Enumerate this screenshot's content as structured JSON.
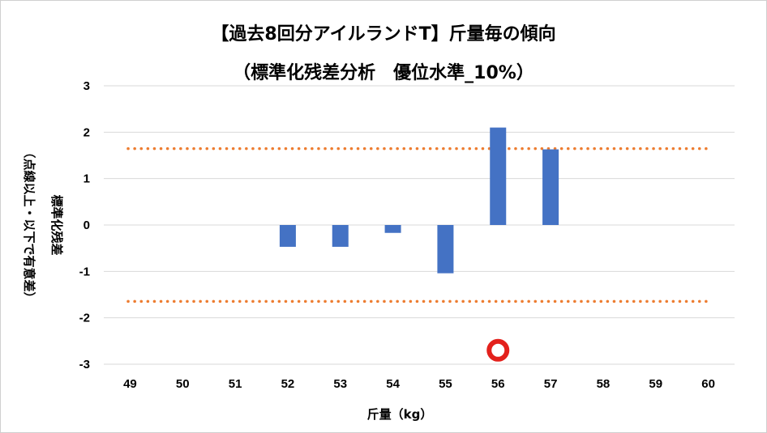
{
  "colors": {
    "bar": "#4472C4",
    "threshold": "#ED7D31",
    "grid": "#D9D9D9",
    "marker_ring": "#E3211C",
    "marker_fill": "#FFFFFF"
  },
  "chart_data": {
    "type": "bar",
    "title": "【過去8回分アイルランドT】斤量毎の傾向",
    "subtitle": "（標準化残差分析　優位水準_10%）",
    "xlabel": "斤量（kg）",
    "ylabel": "標準化残差",
    "ylabel_note": "（点線以上・以下で有意差）",
    "categories": [
      "49",
      "50",
      "51",
      "52",
      "53",
      "54",
      "55",
      "56",
      "57",
      "58",
      "59",
      "60"
    ],
    "values": [
      null,
      null,
      null,
      -0.47,
      -0.47,
      -0.17,
      -1.04,
      2.1,
      1.63,
      null,
      null,
      null
    ],
    "ylim": [
      -3,
      3
    ],
    "yticks": [
      3,
      2,
      1,
      0,
      -1,
      -2,
      -3
    ],
    "thresholds": [
      1.645,
      -1.645
    ],
    "threshold_style": "dotted",
    "highlight_marker": {
      "category": "56",
      "y": -2.7,
      "shape": "ring"
    },
    "grid": true,
    "legend": "none"
  }
}
